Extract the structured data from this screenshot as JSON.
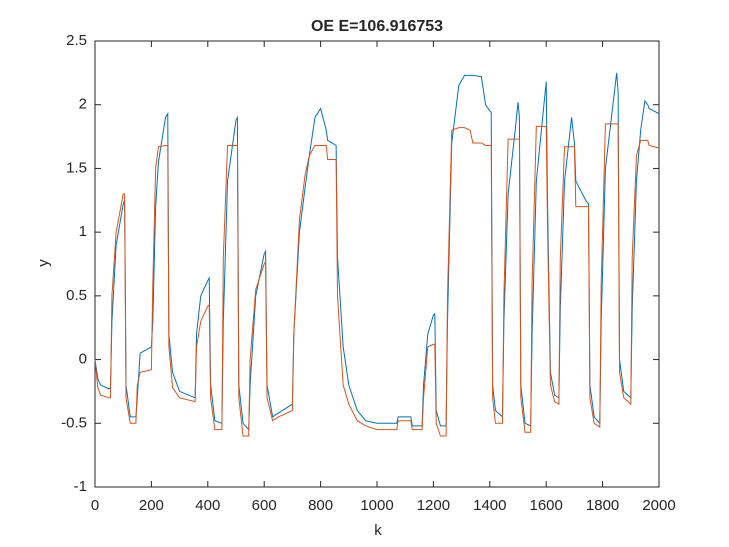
{
  "chart_data": {
    "type": "line",
    "title": "OE E=106.916753",
    "xlabel": "k",
    "ylabel": "y",
    "x": [
      0,
      10,
      20,
      50,
      55,
      60,
      75,
      100,
      105,
      110,
      125,
      145,
      150,
      160,
      200,
      205,
      215,
      225,
      250,
      258,
      262,
      275,
      300,
      355,
      360,
      375,
      400,
      405,
      410,
      425,
      450,
      455,
      470,
      500,
      505,
      510,
      525,
      545,
      550,
      570,
      600,
      605,
      610,
      630,
      650,
      700,
      705,
      725,
      745,
      760,
      780,
      800,
      820,
      825,
      855,
      860,
      880,
      900,
      930,
      960,
      1000,
      1070,
      1075,
      1120,
      1125,
      1160,
      1165,
      1180,
      1200,
      1205,
      1210,
      1225,
      1245,
      1250,
      1265,
      1290,
      1310,
      1330,
      1340,
      1370,
      1385,
      1400,
      1405,
      1410,
      1420,
      1445,
      1450,
      1465,
      1490,
      1500,
      1505,
      1510,
      1525,
      1545,
      1550,
      1565,
      1600,
      1605,
      1615,
      1630,
      1645,
      1650,
      1665,
      1690,
      1700,
      1705,
      1740,
      1750,
      1755,
      1770,
      1790,
      1795,
      1810,
      1850,
      1855,
      1860,
      1875,
      1900,
      1905,
      1920,
      1935,
      1950,
      1960,
      1965,
      2000
    ],
    "series": [
      {
        "color": "#0072bd",
        "values": [
          0,
          -0.15,
          -0.2,
          -0.23,
          -0.22,
          0.3,
          0.9,
          1.22,
          1.25,
          -0.2,
          -0.45,
          -0.45,
          -0.3,
          0.05,
          0.1,
          0.3,
          1.2,
          1.55,
          1.9,
          1.93,
          0.2,
          -0.1,
          -0.25,
          -0.3,
          0.2,
          0.5,
          0.62,
          0.64,
          -0.2,
          -0.48,
          -0.5,
          0.3,
          1.4,
          1.88,
          1.9,
          -0.2,
          -0.5,
          -0.55,
          -0.2,
          0.5,
          0.83,
          0.85,
          -0.2,
          -0.45,
          -0.42,
          -0.35,
          0.2,
          1,
          1.35,
          1.6,
          1.9,
          1.97,
          1.8,
          1.72,
          1.68,
          0.8,
          0.1,
          -0.2,
          -0.4,
          -0.48,
          -0.5,
          -0.5,
          -0.45,
          -0.45,
          -0.52,
          -0.52,
          -0.2,
          0.2,
          0.35,
          0.36,
          -0.4,
          -0.52,
          -0.52,
          0.3,
          1.7,
          2.15,
          2.23,
          2.23,
          2.23,
          2.22,
          2.0,
          1.95,
          1.94,
          -0.2,
          -0.4,
          -0.45,
          0.3,
          1.3,
          1.8,
          2.02,
          1.9,
          -0.2,
          -0.5,
          -0.52,
          0.2,
          1.4,
          2.18,
          1.2,
          -0.1,
          -0.28,
          -0.3,
          0.4,
          1.4,
          1.9,
          1.7,
          1.4,
          1.25,
          1.22,
          -0.2,
          -0.45,
          -0.5,
          0.3,
          1.5,
          2.25,
          2.1,
          0.0,
          -0.25,
          -0.3,
          0.4,
          1.4,
          1.8,
          2.03,
          2.0,
          1.97,
          1.93
        ]
      },
      {
        "color": "#d95319",
        "values": [
          0,
          -0.22,
          -0.28,
          -0.3,
          -0.3,
          0.5,
          1.0,
          1.3,
          1.3,
          -0.3,
          -0.5,
          -0.5,
          -0.2,
          -0.1,
          -0.08,
          0.6,
          1.5,
          1.67,
          1.68,
          1.68,
          0.1,
          -0.22,
          -0.3,
          -0.33,
          0.1,
          0.3,
          0.42,
          0.43,
          -0.3,
          -0.55,
          -0.55,
          0.8,
          1.68,
          1.68,
          1.68,
          -0.3,
          -0.6,
          -0.6,
          0,
          0.55,
          0.75,
          0.77,
          -0.3,
          -0.48,
          -0.45,
          -0.4,
          0.2,
          1.1,
          1.45,
          1.6,
          1.68,
          1.68,
          1.68,
          1.57,
          1.57,
          0.5,
          -0.2,
          -0.35,
          -0.48,
          -0.52,
          -0.55,
          -0.55,
          -0.48,
          -0.48,
          -0.55,
          -0.55,
          -0.3,
          0.1,
          0.12,
          0.12,
          -0.5,
          -0.6,
          -0.6,
          0.5,
          1.8,
          1.82,
          1.82,
          1.8,
          1.7,
          1.7,
          1.68,
          1.68,
          1.68,
          -0.3,
          -0.5,
          -0.5,
          0.5,
          1.73,
          1.73,
          1.73,
          1.73,
          -0.3,
          -0.57,
          -0.57,
          0.6,
          1.83,
          1.83,
          1.0,
          -0.2,
          -0.33,
          -0.35,
          0.8,
          1.67,
          1.67,
          1.67,
          1.2,
          1.2,
          1.2,
          -0.3,
          -0.5,
          -0.53,
          0.6,
          1.85,
          1.85,
          1.85,
          -0.1,
          -0.3,
          -0.35,
          0.8,
          1.6,
          1.72,
          1.72,
          1.72,
          1.68,
          1.66
        ]
      }
    ],
    "xlim": [
      0,
      2000
    ],
    "xticks": [
      0,
      200,
      400,
      600,
      800,
      1000,
      1200,
      1400,
      1600,
      1800,
      2000
    ],
    "ylim": [
      -1,
      2.5
    ],
    "yticks": [
      -1,
      -0.5,
      0,
      0.5,
      1,
      1.5,
      2,
      2.5
    ],
    "grid": false
  }
}
